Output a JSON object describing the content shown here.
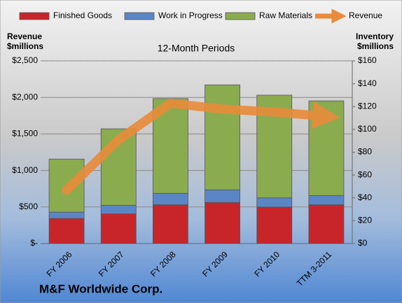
{
  "chart_data": {
    "type": "bar",
    "title": "12-Month Periods",
    "footer": "M&F Worldwide Corp.",
    "y_label": [
      "Revenue",
      "$millions"
    ],
    "y2_label": [
      "Inventory",
      "$millions"
    ],
    "categories": [
      "FY 2006",
      "FY 2007",
      "FY 2008",
      "FY 2009",
      "FY 2010",
      "TTM 3-2011"
    ],
    "series": [
      {
        "name": "Finished Goods",
        "color": "#c8252b",
        "axis": "y2",
        "values": [
          22,
          26,
          34,
          36,
          32,
          34
        ]
      },
      {
        "name": "Work in Progress",
        "color": "#5b86c5",
        "axis": "y2",
        "values": [
          5.5,
          7.5,
          10,
          11,
          8,
          8
        ]
      },
      {
        "name": "Raw Materials",
        "color": "#8bab4f",
        "axis": "y2",
        "values": [
          46.5,
          67,
          83,
          92,
          90,
          83
        ]
      },
      {
        "name": "Revenue",
        "color": "#e98b3a",
        "axis": "y",
        "type": "line",
        "values": [
          730,
          1420,
          1920,
          1840,
          1800,
          1740
        ]
      }
    ],
    "ylim": [
      0,
      2500
    ],
    "yticks": [
      {
        "value": 0,
        "label": "$-"
      },
      {
        "value": 500,
        "label": "$500"
      },
      {
        "value": 1000,
        "label": "$1,000"
      },
      {
        "value": 1500,
        "label": "$1,500"
      },
      {
        "value": 2000,
        "label": "$2,000"
      },
      {
        "value": 2500,
        "label": "$2,500"
      }
    ],
    "y2lim": [
      0,
      160
    ],
    "y2ticks": [
      {
        "value": 0,
        "label": "$0"
      },
      {
        "value": 20,
        "label": "$20"
      },
      {
        "value": 40,
        "label": "$40"
      },
      {
        "value": 60,
        "label": "$60"
      },
      {
        "value": 80,
        "label": "$80"
      },
      {
        "value": 100,
        "label": "$100"
      },
      {
        "value": 120,
        "label": "$120"
      },
      {
        "value": 140,
        "label": "$140"
      },
      {
        "value": 160,
        "label": "$160"
      }
    ],
    "grid": true,
    "legend": "top"
  }
}
